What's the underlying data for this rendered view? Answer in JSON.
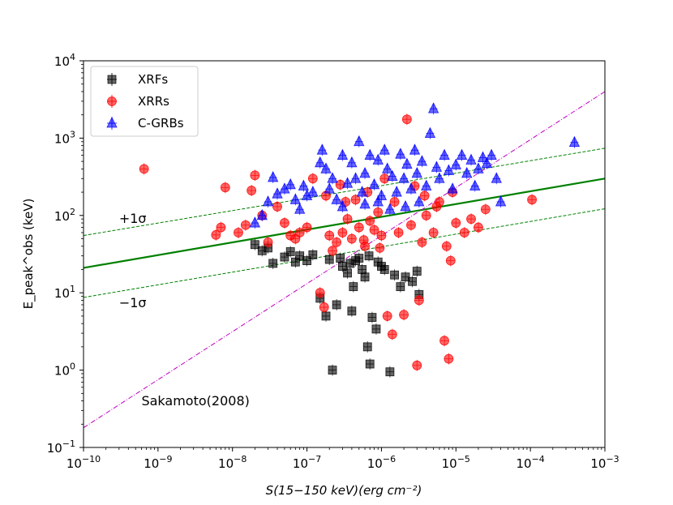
{
  "chart_data": {
    "type": "scatter",
    "xscale": "log",
    "yscale": "log",
    "xlim": [
      1e-10,
      0.001
    ],
    "ylim": [
      0.1,
      10000
    ],
    "xlabel": "S(15−150 keV)(erg cm⁻²)",
    "ylabel": "E_peak^obs (keV)",
    "xticks": [
      {
        "value": 1e-10,
        "base": "10",
        "exp": "−10"
      },
      {
        "value": 1e-09,
        "base": "10",
        "exp": "−9"
      },
      {
        "value": 1e-08,
        "base": "10",
        "exp": "−8"
      },
      {
        "value": 1e-07,
        "base": "10",
        "exp": "−7"
      },
      {
        "value": 1e-06,
        "base": "10",
        "exp": "−6"
      },
      {
        "value": 1e-05,
        "base": "10",
        "exp": "−5"
      },
      {
        "value": 0.0001,
        "base": "10",
        "exp": "−4"
      },
      {
        "value": 0.001,
        "base": "10",
        "exp": "−3"
      }
    ],
    "yticks": [
      {
        "value": 0.1,
        "base": "10",
        "exp": "−1"
      },
      {
        "value": 1,
        "base": "10",
        "exp": "0"
      },
      {
        "value": 10,
        "base": "10",
        "exp": "1"
      },
      {
        "value": 100,
        "base": "10",
        "exp": "2"
      },
      {
        "value": 1000,
        "base": "10",
        "exp": "3"
      },
      {
        "value": 10000,
        "base": "10",
        "exp": "4"
      }
    ],
    "lines": [
      {
        "name": "best-fit",
        "color": "#008000",
        "style": "solid",
        "points": [
          [
            1e-10,
            21
          ],
          [
            0.001,
            300
          ]
        ]
      },
      {
        "name": "plus-1-sigma",
        "color": "#008000",
        "style": "dashed",
        "points": [
          [
            1e-10,
            55
          ],
          [
            0.001,
            740
          ]
        ]
      },
      {
        "name": "minus-1-sigma",
        "color": "#008000",
        "style": "dashed",
        "points": [
          [
            1e-10,
            8.7
          ],
          [
            0.001,
            122
          ]
        ]
      },
      {
        "name": "sakamoto-2008",
        "color": "#bf00bf",
        "style": "dashdot",
        "points": [
          [
            1e-10,
            0.18
          ],
          [
            0.001,
            4000
          ]
        ]
      }
    ],
    "annotations": [
      {
        "text": "+1σ",
        "x": 3e-10,
        "y": 80
      },
      {
        "text": "−1σ",
        "x": 3e-10,
        "y": 6.5
      },
      {
        "text": "Sakamoto(2008)",
        "x": 6e-10,
        "y": 0.35
      }
    ],
    "legend": {
      "location": "top-left",
      "entries": [
        {
          "label": "XRFs",
          "series": "XRFs"
        },
        {
          "label": "XRRs",
          "series": "XRRs"
        },
        {
          "label": "C-GRBs",
          "series": "C-GRBs"
        }
      ]
    },
    "series": [
      {
        "name": "XRFs",
        "marker": "square",
        "color": "#000000",
        "points": [
          [
            2e-08,
            42
          ],
          [
            2.5e-08,
            35
          ],
          [
            3e-08,
            38
          ],
          [
            3.5e-08,
            24
          ],
          [
            5e-08,
            29
          ],
          [
            6e-08,
            34
          ],
          [
            7e-08,
            25
          ],
          [
            8e-08,
            30
          ],
          [
            1e-07,
            26
          ],
          [
            1.2e-07,
            31
          ],
          [
            1.5e-07,
            8.5
          ],
          [
            1.8e-07,
            5
          ],
          [
            2e-07,
            27
          ],
          [
            2.2e-07,
            1.0
          ],
          [
            2.5e-07,
            7
          ],
          [
            3e-07,
            22
          ],
          [
            3.5e-07,
            18
          ],
          [
            4e-07,
            5.8
          ],
          [
            4.5e-07,
            26
          ],
          [
            5e-07,
            28
          ],
          [
            5.5e-07,
            20
          ],
          [
            6e-07,
            16
          ],
          [
            6.5e-07,
            2.0
          ],
          [
            7e-07,
            1.2
          ],
          [
            7.5e-07,
            4.8
          ],
          [
            8.5e-07,
            3.4
          ],
          [
            9e-07,
            25
          ],
          [
            1.1e-06,
            20
          ],
          [
            1.3e-06,
            0.95
          ],
          [
            1.5e-06,
            17
          ],
          [
            1.8e-06,
            12
          ],
          [
            2.1e-06,
            16
          ],
          [
            2.6e-06,
            14
          ],
          [
            3e-06,
            19
          ],
          [
            3.2e-06,
            9.5
          ],
          [
            2.8e-07,
            28
          ],
          [
            3.8e-07,
            24
          ],
          [
            6.8e-07,
            30
          ],
          [
            1e-06,
            22
          ],
          [
            4.2e-07,
            12
          ]
        ]
      },
      {
        "name": "XRRs",
        "marker": "circle",
        "color": "#ff0000",
        "points": [
          [
            6.5e-10,
            400
          ],
          [
            6e-09,
            56
          ],
          [
            7e-09,
            70
          ],
          [
            8e-09,
            230
          ],
          [
            1.2e-08,
            60
          ],
          [
            1.5e-08,
            75
          ],
          [
            1.8e-08,
            210
          ],
          [
            2e-08,
            330
          ],
          [
            2.5e-08,
            100
          ],
          [
            3e-08,
            45
          ],
          [
            4e-08,
            130
          ],
          [
            5e-08,
            80
          ],
          [
            6e-08,
            55
          ],
          [
            7e-08,
            50
          ],
          [
            8e-08,
            60
          ],
          [
            1e-07,
            70
          ],
          [
            1.5e-07,
            10
          ],
          [
            1.7e-07,
            6.5
          ],
          [
            2e-07,
            55
          ],
          [
            2.5e-07,
            45
          ],
          [
            3e-07,
            60
          ],
          [
            3.5e-07,
            90
          ],
          [
            4e-07,
            50
          ],
          [
            5e-07,
            70
          ],
          [
            6e-07,
            40
          ],
          [
            7e-07,
            85
          ],
          [
            8e-07,
            65
          ],
          [
            9e-07,
            110
          ],
          [
            1e-06,
            55
          ],
          [
            1.2e-06,
            5
          ],
          [
            1.4e-06,
            2.9
          ],
          [
            1.7e-06,
            60
          ],
          [
            2e-06,
            5.2
          ],
          [
            2.2e-06,
            1750
          ],
          [
            2.5e-06,
            75
          ],
          [
            3e-06,
            1.15
          ],
          [
            3.2e-06,
            8
          ],
          [
            3.5e-06,
            45
          ],
          [
            4e-06,
            100
          ],
          [
            5e-06,
            60
          ],
          [
            6e-06,
            150
          ],
          [
            7e-06,
            2.4
          ],
          [
            8e-06,
            1.4
          ],
          [
            8.5e-06,
            26
          ],
          [
            9e-06,
            200
          ],
          [
            1e-05,
            80
          ],
          [
            1.3e-05,
            60
          ],
          [
            1.6e-05,
            90
          ],
          [
            2e-05,
            70
          ],
          [
            2.5e-05,
            120
          ],
          [
            0.000105,
            160
          ],
          [
            1.2e-07,
            300
          ],
          [
            1.8e-07,
            180
          ],
          [
            2.8e-07,
            250
          ],
          [
            3.3e-07,
            150
          ],
          [
            4.5e-07,
            160
          ],
          [
            6.5e-07,
            200
          ],
          [
            1.1e-06,
            300
          ],
          [
            1.5e-06,
            150
          ],
          [
            2.8e-06,
            240
          ],
          [
            3.8e-06,
            180
          ],
          [
            5.5e-06,
            130
          ],
          [
            7.5e-06,
            40
          ],
          [
            2.2e-07,
            35
          ],
          [
            5.8e-07,
            48
          ],
          [
            9.5e-07,
            38
          ]
        ]
      },
      {
        "name": "C-GRBs",
        "marker": "triangle",
        "color": "#0000ff",
        "points": [
          [
            2e-08,
            80
          ],
          [
            2.5e-08,
            100
          ],
          [
            3e-08,
            150
          ],
          [
            3.5e-08,
            310
          ],
          [
            4e-08,
            190
          ],
          [
            5e-08,
            220
          ],
          [
            6e-08,
            250
          ],
          [
            7e-08,
            160
          ],
          [
            8e-08,
            120
          ],
          [
            9e-08,
            240
          ],
          [
            1e-07,
            180
          ],
          [
            1.2e-07,
            200
          ],
          [
            1.5e-07,
            480
          ],
          [
            1.6e-07,
            700
          ],
          [
            1.8e-07,
            400
          ],
          [
            2e-07,
            220
          ],
          [
            2.2e-07,
            300
          ],
          [
            2.5e-07,
            160
          ],
          [
            3e-07,
            600
          ],
          [
            3.5e-07,
            260
          ],
          [
            4e-07,
            480
          ],
          [
            4.5e-07,
            300
          ],
          [
            5e-07,
            900
          ],
          [
            5.5e-07,
            200
          ],
          [
            6e-07,
            350
          ],
          [
            7e-07,
            600
          ],
          [
            8e-07,
            250
          ],
          [
            9e-07,
            520
          ],
          [
            1e-06,
            180
          ],
          [
            1.1e-06,
            700
          ],
          [
            1.2e-06,
            400
          ],
          [
            1.4e-06,
            320
          ],
          [
            1.6e-06,
            200
          ],
          [
            1.8e-06,
            620
          ],
          [
            2e-06,
            300
          ],
          [
            2.2e-06,
            460
          ],
          [
            2.5e-06,
            220
          ],
          [
            2.8e-06,
            700
          ],
          [
            3e-06,
            350
          ],
          [
            3.5e-06,
            500
          ],
          [
            4e-06,
            240
          ],
          [
            4.5e-06,
            1150
          ],
          [
            5e-06,
            2400
          ],
          [
            5.5e-06,
            420
          ],
          [
            6e-06,
            300
          ],
          [
            7e-06,
            600
          ],
          [
            8e-06,
            380
          ],
          [
            9e-06,
            220
          ],
          [
            1e-05,
            450
          ],
          [
            1.2e-05,
            600
          ],
          [
            1.4e-05,
            350
          ],
          [
            1.6e-05,
            520
          ],
          [
            1.8e-05,
            240
          ],
          [
            2e-05,
            400
          ],
          [
            2.3e-05,
            560
          ],
          [
            2.6e-05,
            470
          ],
          [
            3e-05,
            600
          ],
          [
            3.5e-05,
            300
          ],
          [
            4e-05,
            150
          ],
          [
            0.00039,
            880
          ],
          [
            3e-07,
            130
          ],
          [
            6e-07,
            140
          ],
          [
            9e-07,
            150
          ],
          [
            1.3e-06,
            120
          ],
          [
            2.1e-06,
            130
          ],
          [
            3.2e-06,
            150
          ]
        ]
      }
    ]
  }
}
